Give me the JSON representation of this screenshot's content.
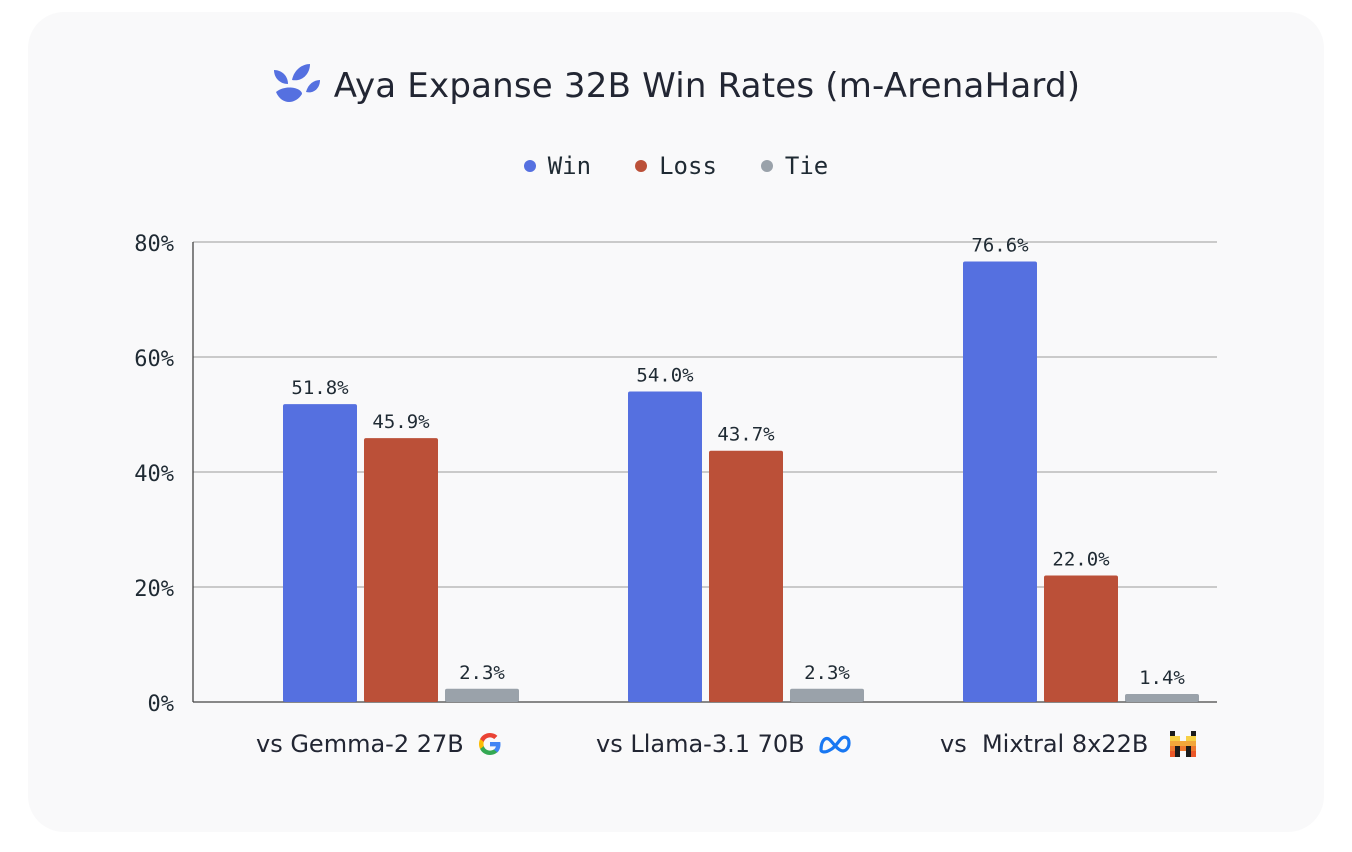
{
  "title": "Aya Expanse 32B Win Rates (m-ArenaHard)",
  "logo_icon": "aya-leaf-icon",
  "legend": [
    {
      "label": "Win",
      "color": "#5570e0"
    },
    {
      "label": "Loss",
      "color": "#bb5038"
    },
    {
      "label": "Tie",
      "color": "#9aa2aa"
    }
  ],
  "categories": [
    {
      "label": "vs Gemma-2 27B",
      "icon": "google-icon"
    },
    {
      "label": "vs Llama-3.1 70B",
      "icon": "meta-icon"
    },
    {
      "label": "vs  Mixtral 8x22B",
      "icon": "mistral-icon"
    }
  ],
  "chart_data": {
    "type": "bar",
    "title": "Aya Expanse 32B Win Rates (m-ArenaHard)",
    "categories": [
      "vs Gemma-2 27B",
      "vs Llama-3.1 70B",
      "vs  Mixtral 8x22B"
    ],
    "series": [
      {
        "name": "Win",
        "values": [
          51.8,
          54.0,
          76.6
        ],
        "labels": [
          "51.8%",
          "54.0%",
          "76.6%"
        ],
        "color": "#5570e0"
      },
      {
        "name": "Loss",
        "values": [
          45.9,
          43.7,
          22.0
        ],
        "labels": [
          "45.9%",
          "43.7%",
          "22.0%"
        ],
        "color": "#bb5038"
      },
      {
        "name": "Tie",
        "values": [
          2.3,
          2.3,
          1.4
        ],
        "labels": [
          "2.3%",
          "2.3%",
          "1.4%"
        ],
        "color": "#9aa2aa"
      }
    ],
    "ylim": [
      0,
      80
    ],
    "yticks": [
      0,
      20,
      40,
      60,
      80
    ],
    "ytick_labels": [
      "0%",
      "20%",
      "40%",
      "60%",
      "80%"
    ],
    "grid": true,
    "legend_position": "top-center"
  }
}
